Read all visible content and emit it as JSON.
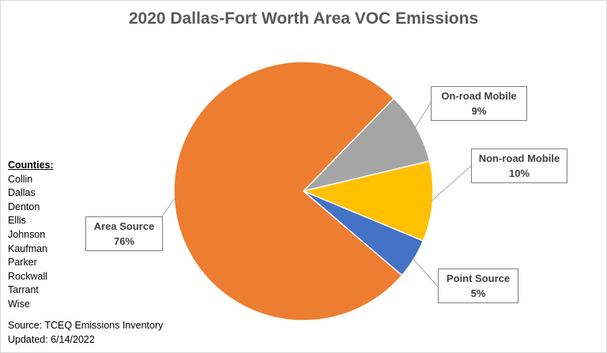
{
  "chart_data": {
    "type": "pie",
    "title": "2020 Dallas-Fort Worth Area VOC Emissions",
    "slices": [
      {
        "label": "On-road Mobile",
        "value": 9,
        "display": "9%",
        "color": "#A5A5A5"
      },
      {
        "label": "Non-road Mobile",
        "value": 10,
        "display": "10%",
        "color": "#FFC000"
      },
      {
        "label": "Point Source",
        "value": 5,
        "display": "5%",
        "color": "#4472C4"
      },
      {
        "label": "Area Source",
        "value": 76,
        "display": "76%",
        "color": "#ED7D31"
      }
    ]
  },
  "counties_header": "Counties:",
  "counties": [
    "Collin",
    "Dallas",
    "Denton",
    "Ellis",
    "Johnson",
    "Kaufman",
    "Parker",
    "Rockwall",
    "Tarrant",
    "Wise"
  ],
  "source_line": "Source: TCEQ Emissions Inventory",
  "updated_line": "Updated: 6/14/2022"
}
